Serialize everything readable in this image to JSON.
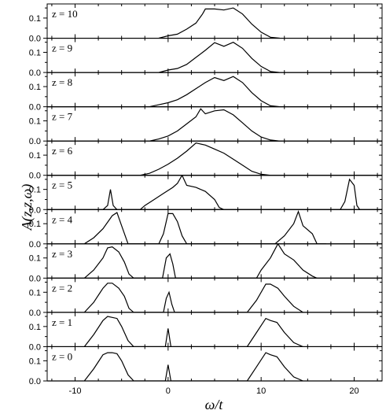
{
  "chart_data": {
    "type": "line",
    "title": "",
    "xlabel": "ω/t",
    "ylabel": "A(z,z,ω)",
    "xlim": [
      -13,
      23
    ],
    "ylim": [
      0,
      0.17
    ],
    "xticks": [
      -10,
      0,
      10,
      20
    ],
    "yticks": [
      0.0,
      0.1
    ],
    "ytick_labels": [
      "0.0",
      "0.1"
    ],
    "xtick_labels": [
      "-10",
      "0",
      "10",
      "20"
    ],
    "grid": false,
    "legend": "none",
    "panels": [
      {
        "label": "z = 10",
        "points": [
          [
            -1,
            0
          ],
          [
            0,
            0.012
          ],
          [
            1,
            0.02
          ],
          [
            2,
            0.045
          ],
          [
            3,
            0.075
          ],
          [
            3.7,
            0.12
          ],
          [
            4,
            0.145
          ],
          [
            5,
            0.145
          ],
          [
            6,
            0.14
          ],
          [
            7,
            0.15
          ],
          [
            8,
            0.12
          ],
          [
            9,
            0.07
          ],
          [
            10,
            0.03
          ],
          [
            11,
            0.005
          ],
          [
            12,
            0
          ]
        ]
      },
      {
        "label": "z = 9",
        "points": [
          [
            -1,
            0
          ],
          [
            0,
            0.012
          ],
          [
            1,
            0.02
          ],
          [
            2,
            0.04
          ],
          [
            3,
            0.075
          ],
          [
            4,
            0.11
          ],
          [
            5,
            0.148
          ],
          [
            6,
            0.13
          ],
          [
            7,
            0.15
          ],
          [
            8,
            0.12
          ],
          [
            9,
            0.07
          ],
          [
            10,
            0.03
          ],
          [
            11,
            0.005
          ],
          [
            12,
            0
          ]
        ]
      },
      {
        "label": "z = 8",
        "points": [
          [
            -2,
            0
          ],
          [
            -1,
            0.01
          ],
          [
            0,
            0.02
          ],
          [
            1,
            0.035
          ],
          [
            2,
            0.06
          ],
          [
            3,
            0.09
          ],
          [
            4,
            0.12
          ],
          [
            5,
            0.145
          ],
          [
            6,
            0.13
          ],
          [
            7,
            0.15
          ],
          [
            8,
            0.12
          ],
          [
            9,
            0.07
          ],
          [
            10,
            0.03
          ],
          [
            11,
            0.005
          ],
          [
            12,
            0
          ]
        ]
      },
      {
        "label": "z = 7",
        "points": [
          [
            -2,
            0
          ],
          [
            -1,
            0.01
          ],
          [
            0,
            0.025
          ],
          [
            1,
            0.05
          ],
          [
            2,
            0.085
          ],
          [
            3,
            0.12
          ],
          [
            3.5,
            0.16
          ],
          [
            4,
            0.135
          ],
          [
            5,
            0.15
          ],
          [
            6,
            0.155
          ],
          [
            7,
            0.13
          ],
          [
            8,
            0.09
          ],
          [
            9,
            0.05
          ],
          [
            10,
            0.02
          ],
          [
            11,
            0.005
          ],
          [
            12,
            0
          ]
        ]
      },
      {
        "label": "z = 6",
        "points": [
          [
            -3,
            0
          ],
          [
            -2,
            0.01
          ],
          [
            -1,
            0.03
          ],
          [
            0,
            0.055
          ],
          [
            1,
            0.085
          ],
          [
            2,
            0.12
          ],
          [
            3,
            0.16
          ],
          [
            4,
            0.15
          ],
          [
            5,
            0.13
          ],
          [
            6,
            0.11
          ],
          [
            7,
            0.08
          ],
          [
            8,
            0.05
          ],
          [
            9,
            0.02
          ],
          [
            10,
            0.005
          ],
          [
            11,
            0
          ]
        ]
      },
      {
        "label": "z = 5",
        "points": [
          [
            -7,
            0
          ],
          [
            -6.5,
            0.02
          ],
          [
            -6.2,
            0.1
          ],
          [
            -5.9,
            0.02
          ],
          [
            -5.5,
            0
          ],
          [
            -3,
            0
          ],
          [
            -2.5,
            0.02
          ],
          [
            -1.5,
            0.05
          ],
          [
            -0.5,
            0.08
          ],
          [
            0.5,
            0.11
          ],
          [
            1,
            0.13
          ],
          [
            1.5,
            0.17
          ],
          [
            2,
            0.12
          ],
          [
            3,
            0.11
          ],
          [
            4,
            0.09
          ],
          [
            5,
            0.05
          ],
          [
            5.5,
            0.01
          ],
          [
            6,
            0
          ],
          [
            18.5,
            0
          ],
          [
            19,
            0.04
          ],
          [
            19.5,
            0.15
          ],
          [
            20,
            0.12
          ],
          [
            20.3,
            0.02
          ],
          [
            20.6,
            0
          ]
        ]
      },
      {
        "label": "z = 4",
        "points": [
          [
            -9,
            0
          ],
          [
            -8,
            0.03
          ],
          [
            -7,
            0.075
          ],
          [
            -6,
            0.14
          ],
          [
            -5.5,
            0.155
          ],
          [
            -5,
            0.09
          ],
          [
            -4.3,
            0
          ],
          [
            -1,
            0
          ],
          [
            -0.5,
            0.05
          ],
          [
            0,
            0.15
          ],
          [
            0.5,
            0.15
          ],
          [
            1,
            0.11
          ],
          [
            1.5,
            0.04
          ],
          [
            2,
            0
          ],
          [
            11.5,
            0
          ],
          [
            12.5,
            0.04
          ],
          [
            13.5,
            0.1
          ],
          [
            14,
            0.16
          ],
          [
            14.5,
            0.09
          ],
          [
            15.5,
            0.05
          ],
          [
            16,
            0
          ],
          [
            17,
            0
          ]
        ]
      },
      {
        "label": "z = 3",
        "points": [
          [
            -9,
            0
          ],
          [
            -8,
            0.04
          ],
          [
            -7,
            0.1
          ],
          [
            -6.5,
            0.15
          ],
          [
            -6,
            0.155
          ],
          [
            -5.3,
            0.13
          ],
          [
            -4.7,
            0.08
          ],
          [
            -4.2,
            0.02
          ],
          [
            -3.7,
            0
          ],
          [
            -0.6,
            0
          ],
          [
            -0.2,
            0.1
          ],
          [
            0.2,
            0.12
          ],
          [
            0.5,
            0.07
          ],
          [
            0.8,
            0
          ],
          [
            9.5,
            0
          ],
          [
            10,
            0.04
          ],
          [
            11,
            0.1
          ],
          [
            11.8,
            0.17
          ],
          [
            12.5,
            0.12
          ],
          [
            13.5,
            0.09
          ],
          [
            14.5,
            0.04
          ],
          [
            15.5,
            0.01
          ],
          [
            16,
            0
          ]
        ]
      },
      {
        "label": "z = 2",
        "points": [
          [
            -9,
            0
          ],
          [
            -8,
            0.05
          ],
          [
            -7,
            0.12
          ],
          [
            -6.5,
            0.145
          ],
          [
            -6,
            0.145
          ],
          [
            -5.3,
            0.12
          ],
          [
            -4.7,
            0.08
          ],
          [
            -4.2,
            0.02
          ],
          [
            -3.7,
            0
          ],
          [
            -0.5,
            0
          ],
          [
            -0.2,
            0.07
          ],
          [
            0.1,
            0.1
          ],
          [
            0.4,
            0.04
          ],
          [
            0.7,
            0
          ],
          [
            8.5,
            0
          ],
          [
            9.5,
            0.06
          ],
          [
            10.5,
            0.14
          ],
          [
            11,
            0.14
          ],
          [
            11.8,
            0.12
          ],
          [
            12.5,
            0.08
          ],
          [
            13.5,
            0.03
          ],
          [
            14.5,
            0
          ]
        ]
      },
      {
        "label": "z = 1",
        "points": [
          [
            -9,
            0
          ],
          [
            -8,
            0.06
          ],
          [
            -7,
            0.13
          ],
          [
            -6.5,
            0.15
          ],
          [
            -6,
            0.145
          ],
          [
            -5.5,
            0.14
          ],
          [
            -5,
            0.1
          ],
          [
            -4.3,
            0.03
          ],
          [
            -3.7,
            0
          ],
          [
            -0.3,
            0
          ],
          [
            0,
            0.09
          ],
          [
            0.3,
            0
          ],
          [
            8.5,
            0
          ],
          [
            9.5,
            0.07
          ],
          [
            10.5,
            0.14
          ],
          [
            11,
            0.13
          ],
          [
            11.7,
            0.12
          ],
          [
            12.5,
            0.07
          ],
          [
            13.5,
            0.02
          ],
          [
            14.5,
            0
          ]
        ]
      },
      {
        "label": "z = 0",
        "points": [
          [
            -9,
            0
          ],
          [
            -8,
            0.06
          ],
          [
            -7,
            0.13
          ],
          [
            -6.5,
            0.14
          ],
          [
            -6,
            0.14
          ],
          [
            -5.5,
            0.135
          ],
          [
            -5,
            0.1
          ],
          [
            -4.3,
            0.03
          ],
          [
            -3.7,
            0
          ],
          [
            -0.3,
            0
          ],
          [
            0,
            0.08
          ],
          [
            0.3,
            0
          ],
          [
            8.5,
            0
          ],
          [
            9.5,
            0.07
          ],
          [
            10.5,
            0.14
          ],
          [
            11,
            0.13
          ],
          [
            11.7,
            0.12
          ],
          [
            12.5,
            0.07
          ],
          [
            13.5,
            0.02
          ],
          [
            14.5,
            0
          ]
        ]
      }
    ]
  }
}
